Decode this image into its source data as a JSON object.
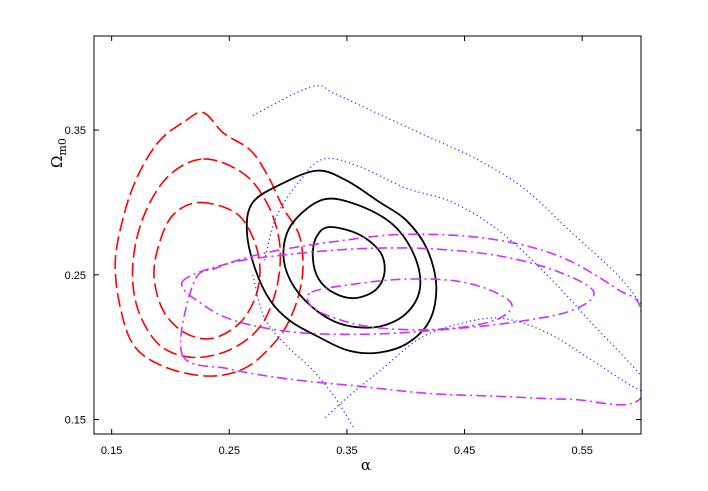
{
  "chart_data": {
    "type": "contour",
    "xlabel": "α",
    "ylabel_main": "Ω",
    "ylabel_sub": "m0",
    "xlim": [
      0.135,
      0.6
    ],
    "ylim": [
      0.14,
      0.415
    ],
    "xticks": [
      0.15,
      0.25,
      0.35,
      0.45,
      0.55
    ],
    "xtick_labels": [
      "0.15",
      "0.25",
      "0.35",
      "0.45",
      "0.55"
    ],
    "yticks": [
      0.15,
      0.25,
      0.35
    ],
    "ytick_labels": [
      "0.15",
      "0.25",
      "0.35"
    ],
    "grid": false,
    "series": [
      {
        "style": "dashed",
        "color": "#ff0000",
        "center": [
          0.224,
          0.259
        ],
        "contours": [
          [
            [
              0.225,
              0.3
            ],
            [
              0.255,
              0.293
            ],
            [
              0.27,
              0.276
            ],
            [
              0.276,
              0.255
            ],
            [
              0.272,
              0.234
            ],
            [
              0.258,
              0.216
            ],
            [
              0.235,
              0.206
            ],
            [
              0.212,
              0.21
            ],
            [
              0.194,
              0.225
            ],
            [
              0.186,
              0.249
            ],
            [
              0.191,
              0.273
            ],
            [
              0.203,
              0.292
            ]
          ],
          [
            [
              0.228,
              0.33
            ],
            [
              0.262,
              0.32
            ],
            [
              0.283,
              0.298
            ],
            [
              0.293,
              0.27
            ],
            [
              0.29,
              0.24
            ],
            [
              0.276,
              0.214
            ],
            [
              0.25,
              0.198
            ],
            [
              0.218,
              0.193
            ],
            [
              0.19,
              0.202
            ],
            [
              0.172,
              0.227
            ],
            [
              0.168,
              0.257
            ],
            [
              0.177,
              0.29
            ],
            [
              0.198,
              0.318
            ]
          ],
          [
            [
              0.228,
              0.362
            ],
            [
              0.245,
              0.348
            ],
            [
              0.268,
              0.336
            ],
            [
              0.283,
              0.318
            ],
            [
              0.296,
              0.296
            ],
            [
              0.31,
              0.276
            ],
            [
              0.312,
              0.248
            ],
            [
              0.302,
              0.22
            ],
            [
              0.285,
              0.2
            ],
            [
              0.262,
              0.185
            ],
            [
              0.232,
              0.18
            ],
            [
              0.196,
              0.186
            ],
            [
              0.17,
              0.2
            ],
            [
              0.158,
              0.225
            ],
            [
              0.153,
              0.258
            ],
            [
              0.16,
              0.29
            ],
            [
              0.172,
              0.318
            ],
            [
              0.19,
              0.342
            ],
            [
              0.212,
              0.356
            ]
          ]
        ]
      },
      {
        "style": "solid",
        "color": "#000000",
        "center": [
          0.35,
          0.265
        ],
        "contours": [
          [
            [
              0.335,
              0.283
            ],
            [
              0.36,
              0.278
            ],
            [
              0.378,
              0.266
            ],
            [
              0.382,
              0.252
            ],
            [
              0.375,
              0.24
            ],
            [
              0.358,
              0.234
            ],
            [
              0.34,
              0.237
            ],
            [
              0.326,
              0.247
            ],
            [
              0.321,
              0.262
            ],
            [
              0.324,
              0.276
            ]
          ],
          [
            [
              0.33,
              0.302
            ],
            [
              0.36,
              0.298
            ],
            [
              0.39,
              0.284
            ],
            [
              0.408,
              0.262
            ],
            [
              0.412,
              0.24
            ],
            [
              0.4,
              0.223
            ],
            [
              0.376,
              0.214
            ],
            [
              0.345,
              0.216
            ],
            [
              0.32,
              0.228
            ],
            [
              0.302,
              0.246
            ],
            [
              0.296,
              0.266
            ],
            [
              0.304,
              0.286
            ]
          ],
          [
            [
              0.265,
              0.28
            ],
            [
              0.27,
              0.3
            ],
            [
              0.295,
              0.313
            ],
            [
              0.325,
              0.322
            ],
            [
              0.35,
              0.315
            ],
            [
              0.378,
              0.3
            ],
            [
              0.4,
              0.288
            ],
            [
              0.418,
              0.268
            ],
            [
              0.426,
              0.242
            ],
            [
              0.42,
              0.218
            ],
            [
              0.4,
              0.202
            ],
            [
              0.374,
              0.196
            ],
            [
              0.35,
              0.198
            ],
            [
              0.326,
              0.207
            ],
            [
              0.302,
              0.218
            ],
            [
              0.285,
              0.232
            ],
            [
              0.272,
              0.254
            ]
          ]
        ]
      },
      {
        "style": "dash-dot",
        "color": "#cc33ff",
        "center": [
          0.4,
          0.235
        ],
        "contours": [
          [
            [
              0.32,
              0.238
            ],
            [
              0.36,
              0.244
            ],
            [
              0.4,
              0.247
            ],
            [
              0.44,
              0.246
            ],
            [
              0.47,
              0.24
            ],
            [
              0.49,
              0.23
            ],
            [
              0.48,
              0.22
            ],
            [
              0.45,
              0.214
            ],
            [
              0.41,
              0.212
            ],
            [
              0.37,
              0.214
            ],
            [
              0.34,
              0.22
            ],
            [
              0.32,
              0.228
            ]
          ],
          [
            [
              0.21,
              0.245
            ],
            [
              0.25,
              0.258
            ],
            [
              0.3,
              0.264
            ],
            [
              0.36,
              0.268
            ],
            [
              0.42,
              0.268
            ],
            [
              0.48,
              0.263
            ],
            [
              0.53,
              0.252
            ],
            [
              0.56,
              0.238
            ],
            [
              0.54,
              0.225
            ],
            [
              0.49,
              0.217
            ],
            [
              0.43,
              0.212
            ],
            [
              0.37,
              0.209
            ],
            [
              0.31,
              0.21
            ],
            [
              0.26,
              0.217
            ],
            [
              0.23,
              0.228
            ]
          ],
          [
            [
              0.21,
              0.195
            ],
            [
              0.25,
              0.185
            ],
            [
              0.3,
              0.178
            ],
            [
              0.36,
              0.173
            ],
            [
              0.42,
              0.168
            ],
            [
              0.48,
              0.166
            ],
            [
              0.54,
              0.164
            ],
            [
              0.6,
              0.165
            ],
            [
              0.6,
              0.225
            ],
            [
              0.58,
              0.24
            ],
            [
              0.53,
              0.263
            ],
            [
              0.47,
              0.275
            ],
            [
              0.4,
              0.278
            ],
            [
              0.34,
              0.273
            ],
            [
              0.28,
              0.265
            ],
            [
              0.24,
              0.255
            ],
            [
              0.22,
              0.245
            ]
          ]
        ]
      },
      {
        "style": "dotted",
        "color": "#3333ff",
        "center": [
          0.36,
          0.27
        ],
        "contours": [
          [
            [
              0.28,
              0.26
            ],
            [
              0.29,
              0.29
            ],
            [
              0.31,
              0.315
            ],
            [
              0.33,
              0.33
            ],
            [
              0.36,
              0.325
            ],
            [
              0.4,
              0.31
            ],
            [
              0.44,
              0.3
            ],
            [
              0.48,
              0.28
            ],
            [
              0.52,
              0.25
            ],
            [
              0.56,
              0.215
            ],
            [
              0.6,
              0.18
            ],
            [
              0.6,
              0.17
            ],
            [
              0.56,
              0.19
            ],
            [
              0.52,
              0.21
            ],
            [
              0.48,
              0.22
            ],
            [
              0.44,
              0.215
            ],
            [
              0.41,
              0.205
            ],
            [
              0.38,
              0.185
            ],
            [
              0.35,
              0.165
            ],
            [
              0.33,
              0.15
            ]
          ],
          [
            [
              0.27,
              0.36
            ],
            [
              0.32,
              0.38
            ],
            [
              0.34,
              0.375
            ],
            [
              0.38,
              0.36
            ],
            [
              0.42,
              0.345
            ],
            [
              0.46,
              0.33
            ],
            [
              0.5,
              0.31
            ],
            [
              0.54,
              0.28
            ],
            [
              0.58,
              0.25
            ],
            [
              0.6,
              0.23
            ]
          ],
          [
            [
              0.27,
              0.25
            ],
            [
              0.28,
              0.22
            ],
            [
              0.3,
              0.2
            ],
            [
              0.32,
              0.185
            ],
            [
              0.34,
              0.165
            ],
            [
              0.355,
              0.145
            ]
          ]
        ]
      }
    ]
  }
}
